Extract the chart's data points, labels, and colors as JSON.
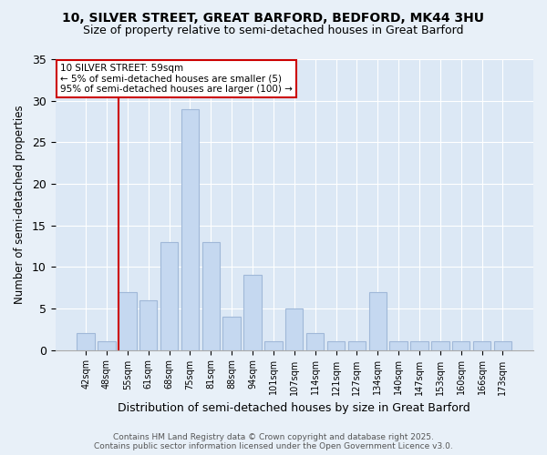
{
  "title_line1": "10, SILVER STREET, GREAT BARFORD, BEDFORD, MK44 3HU",
  "title_line2": "Size of property relative to semi-detached houses in Great Barford",
  "xlabel": "Distribution of semi-detached houses by size in Great Barford",
  "ylabel": "Number of semi-detached properties",
  "categories": [
    "42sqm",
    "48sqm",
    "55sqm",
    "61sqm",
    "68sqm",
    "75sqm",
    "81sqm",
    "88sqm",
    "94sqm",
    "101sqm",
    "107sqm",
    "114sqm",
    "121sqm",
    "127sqm",
    "134sqm",
    "140sqm",
    "147sqm",
    "153sqm",
    "160sqm",
    "166sqm",
    "173sqm"
  ],
  "values": [
    2,
    1,
    7,
    6,
    13,
    29,
    13,
    4,
    9,
    1,
    5,
    2,
    1,
    1,
    7,
    1,
    1,
    1,
    1,
    1,
    1
  ],
  "bar_color": "#c5d8f0",
  "bar_edge_color": "#a0b8d8",
  "vline_x_index": 2,
  "annotation_title": "10 SILVER STREET: 59sqm",
  "annotation_line2": "← 5% of semi-detached houses are smaller (5)",
  "annotation_line3": "95% of semi-detached houses are larger (100) →",
  "annotation_box_color": "#ffffff",
  "annotation_box_edge": "#cc0000",
  "vline_color": "#cc0000",
  "ylim": [
    0,
    35
  ],
  "yticks": [
    0,
    5,
    10,
    15,
    20,
    25,
    30,
    35
  ],
  "footer_line1": "Contains HM Land Registry data © Crown copyright and database right 2025.",
  "footer_line2": "Contains public sector information licensed under the Open Government Licence v3.0.",
  "bg_color": "#e8f0f8",
  "plot_bg_color": "#dce8f5"
}
